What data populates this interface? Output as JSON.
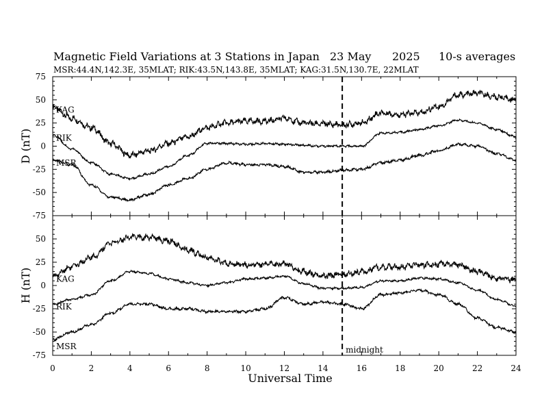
{
  "title": {
    "main": "Magnetic Field Variations at 3 Stations in Japan",
    "date": "23 May",
    "year": "2025",
    "avg": "10-s averages",
    "stations": "MSR:44.4N,142.3E, 35MLAT;  RIK:43.5N,143.8E, 35MLAT;  KAG:31.5N,130.7E, 22MLAT"
  },
  "chart_data": [
    {
      "type": "line",
      "ylabel": "D (nT)",
      "ylim": [
        -75,
        75
      ],
      "yticks": [
        "75",
        "50",
        "25",
        "0",
        "-25",
        "-50",
        "-75"
      ],
      "x": [
        0,
        1,
        2,
        3,
        4,
        5,
        6,
        7,
        8,
        9,
        10,
        11,
        12,
        13,
        14,
        15,
        16,
        17,
        18,
        19,
        20,
        21,
        22,
        23,
        24
      ],
      "series": [
        {
          "name": "KAG",
          "values": [
            42,
            30,
            20,
            3,
            -10,
            -5,
            3,
            10,
            20,
            25,
            27,
            27,
            30,
            25,
            24,
            23,
            25,
            36,
            34,
            36,
            43,
            55,
            57,
            53,
            50
          ]
        },
        {
          "name": "RIK",
          "values": [
            12,
            -3,
            -18,
            -30,
            -35,
            -30,
            -22,
            -10,
            3,
            3,
            2,
            3,
            2,
            1,
            0,
            0,
            0,
            14,
            15,
            18,
            22,
            28,
            25,
            18,
            10
          ]
        },
        {
          "name": "MSR",
          "values": [
            -15,
            -20,
            -42,
            -55,
            -58,
            -52,
            -42,
            -35,
            -25,
            -18,
            -20,
            -20,
            -22,
            -28,
            -28,
            -26,
            -25,
            -18,
            -15,
            -10,
            -5,
            2,
            0,
            -8,
            -15
          ]
        }
      ]
    },
    {
      "type": "line",
      "ylabel": "H (nT)",
      "ylim": [
        -75,
        75
      ],
      "yticks": [
        "",
        "50",
        "25",
        "0",
        "-25",
        "-50",
        "-75"
      ],
      "x": [
        0,
        1,
        2,
        3,
        4,
        5,
        6,
        7,
        8,
        9,
        10,
        11,
        12,
        13,
        14,
        15,
        16,
        17,
        18,
        19,
        20,
        21,
        22,
        23,
        24
      ],
      "series": [
        {
          "name": "KAG",
          "values": [
            10,
            20,
            30,
            45,
            52,
            52,
            48,
            38,
            30,
            24,
            22,
            23,
            23,
            15,
            10,
            12,
            15,
            20,
            20,
            22,
            23,
            22,
            15,
            8,
            6
          ]
        },
        {
          "name": "RIK",
          "values": [
            -20,
            -15,
            -10,
            5,
            15,
            13,
            7,
            3,
            0,
            3,
            7,
            8,
            10,
            2,
            -3,
            -3,
            -2,
            5,
            5,
            8,
            7,
            3,
            -5,
            -15,
            -22
          ]
        },
        {
          "name": "MSR",
          "values": [
            -58,
            -50,
            -42,
            -30,
            -20,
            -20,
            -25,
            -25,
            -28,
            -28,
            -28,
            -25,
            -13,
            -20,
            -18,
            -20,
            -25,
            -10,
            -8,
            -5,
            -10,
            -20,
            -35,
            -45,
            -50
          ]
        }
      ]
    }
  ],
  "xaxis": {
    "label": "Universal Time",
    "range": [
      0,
      24
    ],
    "ticks": [
      "0",
      "2",
      "4",
      "6",
      "8",
      "10",
      "12",
      "14",
      "16",
      "18",
      "20",
      "22",
      "24"
    ]
  },
  "midnight": {
    "x": 15,
    "label": "midnight"
  },
  "colors": {
    "line": "#000000",
    "background": "#ffffff"
  }
}
